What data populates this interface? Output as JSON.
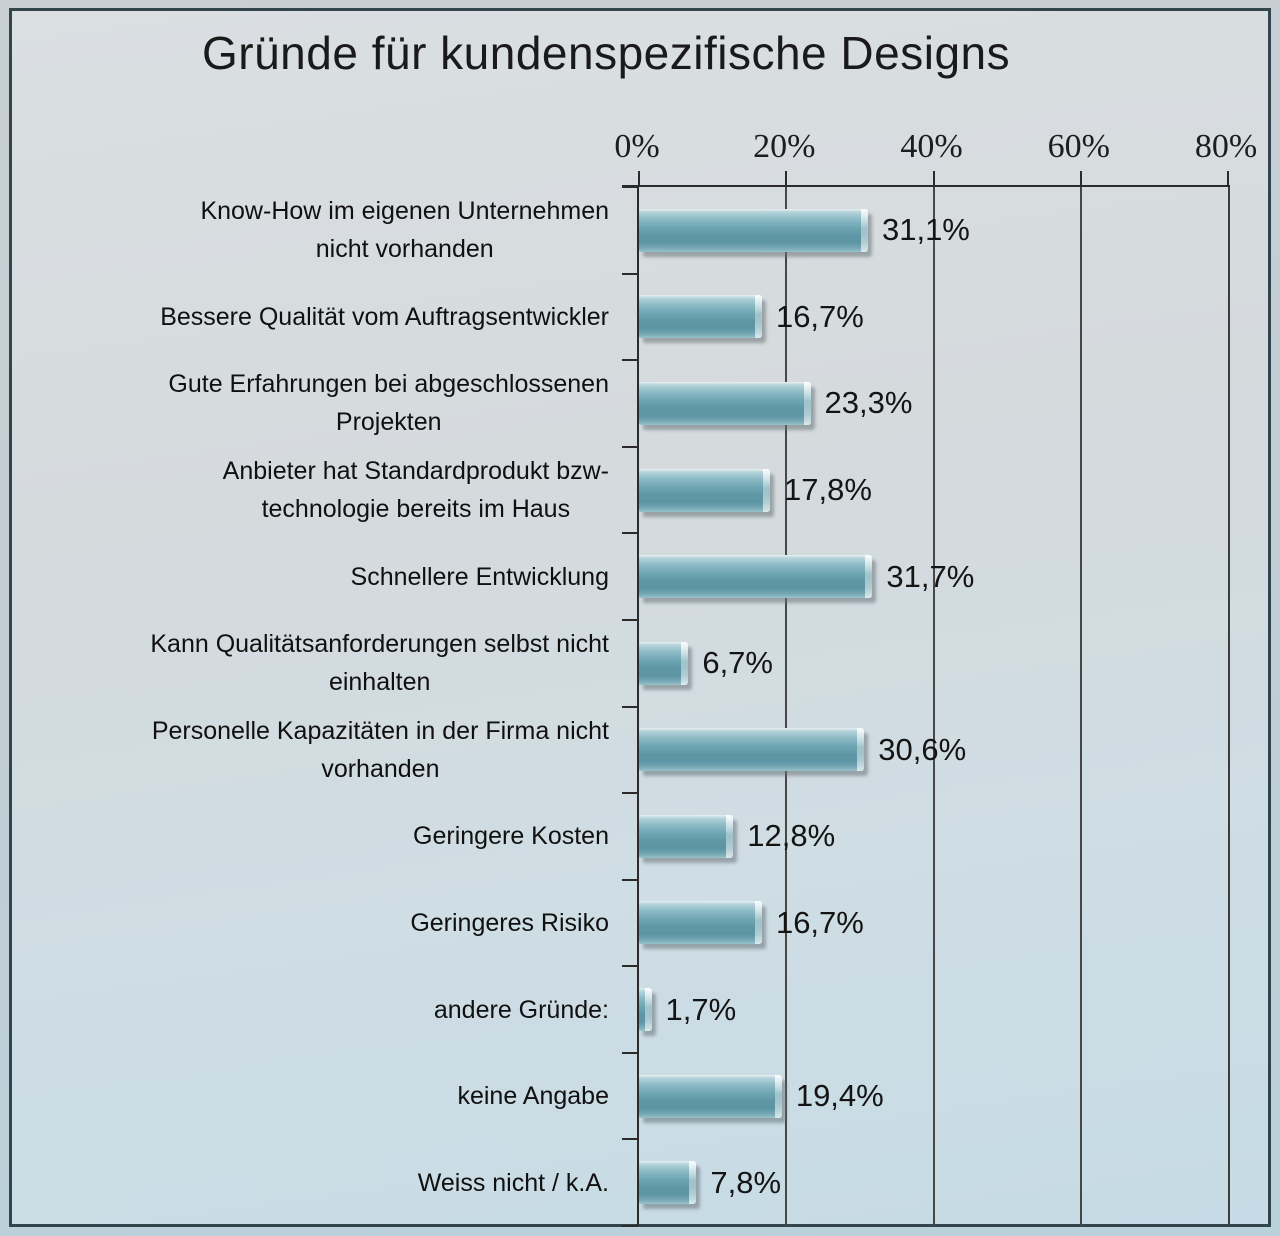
{
  "chart_data": {
    "type": "bar",
    "orientation": "horizontal",
    "title": "Gründe für kundenspezifische Designs",
    "categories": [
      "Know-How im eigenen Unternehmen\nnicht vorhanden",
      "Bessere Qualität vom Auftragsentwickler",
      "Gute Erfahrungen bei abgeschlossenen\nProjekten",
      "Anbieter hat Standardprodukt bzw-\ntechnologie bereits im Haus",
      "Schnellere Entwicklung",
      "Kann Qualitätsanforderungen selbst nicht\neinhalten",
      "Personelle Kapazitäten in der Firma nicht\nvorhanden",
      "Geringere Kosten",
      "Geringeres Risiko",
      "andere Gründe:",
      "keine Angabe",
      "Weiss nicht / k.A."
    ],
    "values": [
      31.1,
      16.7,
      23.3,
      17.8,
      31.7,
      6.7,
      30.6,
      12.8,
      16.7,
      1.7,
      19.4,
      7.8
    ],
    "value_labels": [
      "31,1%",
      "16,7%",
      "23,3%",
      "17,8%",
      "31,7%",
      "6,7%",
      "30,6%",
      "12,8%",
      "16,7%",
      "1,7%",
      "19,4%",
      "7,8%"
    ],
    "xlabel": "",
    "ylabel": "",
    "xlim": [
      0,
      80
    ],
    "x_ticks": {
      "values": [
        0,
        20,
        40,
        60,
        80
      ],
      "labels": [
        "0%",
        "20%",
        "40%",
        "60%",
        "80%"
      ]
    },
    "grid": "vertical gridlines at each 20%",
    "legend": "none",
    "colors": {
      "bar_mid": "#5e96a5",
      "bar_light": "#b6d4db",
      "frame_border": "#32454c",
      "grid_line": "#474747",
      "axis_line": "#2b2b2b",
      "text": "#141414",
      "background_top": "#dadfe2",
      "background_bottom": "#c6dbe5"
    }
  }
}
